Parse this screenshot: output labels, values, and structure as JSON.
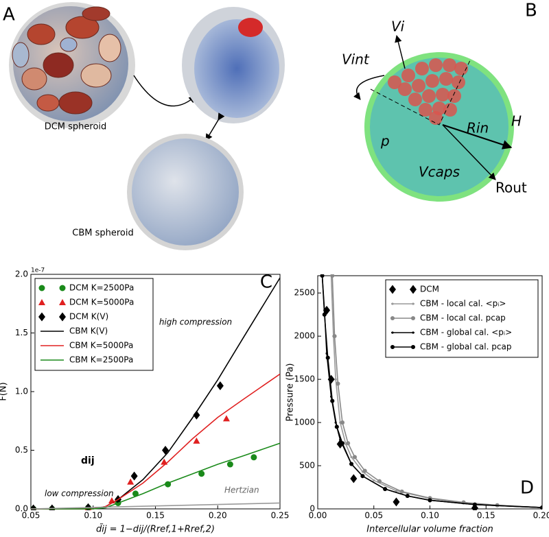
{
  "panel_a": {
    "label": "A",
    "dcm_caption": "DCM spheroid",
    "cbm_caption": "CBM spheroid"
  },
  "panel_b": {
    "label": "B",
    "v_i": "Vi",
    "v_int": "Vint",
    "r_in": "Rin",
    "h": "H",
    "p": "p",
    "v_caps": "Vcaps",
    "r_out": "Rout"
  },
  "chart_data": [
    {
      "type": "line",
      "panel_label": "C",
      "y_offset_label": "1e-7",
      "xlabel": "d̃ij = 1−dij/(Rref,1+Rref,2)",
      "ylabel": "F(N)",
      "annotations": [
        "high compression",
        "low compression",
        "Hertzian",
        "dij"
      ],
      "xlim": [
        0.05,
        0.25
      ],
      "xticks": [
        0.05,
        {
          "value": 0.1,
          "label": "0.10"
        },
        0.15,
        {
          "value": 0.2,
          "label": "0.20"
        },
        0.25
      ],
      "ylim": [
        0,
        2.0
      ],
      "yticks": [
        {
          "value": 0,
          "label": "0.0"
        },
        0.5,
        {
          "value": 1,
          "label": "1.0"
        },
        1.5,
        {
          "value": 2,
          "label": "2.0"
        }
      ],
      "legend": "upper left",
      "series": [
        {
          "name": "DCM K=2500Pa",
          "color": "#1a8a1a",
          "marker": "circle",
          "line": "none",
          "x": [
            0.052,
            0.067,
            0.096,
            0.12,
            0.134,
            0.16,
            0.187,
            0.21,
            0.229
          ],
          "values": [
            0,
            0,
            0.01,
            0.05,
            0.13,
            0.21,
            0.3,
            0.38,
            0.44
          ]
        },
        {
          "name": "DCM K=5000Pa",
          "color": "#e02020",
          "marker": "triangle",
          "line": "none",
          "x": [
            0.052,
            0.067,
            0.096,
            0.115,
            0.13,
            0.157,
            0.183,
            0.207
          ],
          "values": [
            0,
            0,
            0.01,
            0.07,
            0.23,
            0.4,
            0.58,
            0.77
          ]
        },
        {
          "name": "DCM K(V)",
          "color": "#000000",
          "marker": "diamond",
          "line": "none",
          "x": [
            0.052,
            0.067,
            0.096,
            0.12,
            0.133,
            0.158,
            0.183,
            0.202
          ],
          "values": [
            0,
            0,
            0.01,
            0.08,
            0.28,
            0.5,
            0.8,
            1.05
          ]
        },
        {
          "name": "CBM K(V)",
          "color": "#000000",
          "marker": "none",
          "line": "solid",
          "x": [
            0.05,
            0.1,
            0.11,
            0.12,
            0.14,
            0.16,
            0.18,
            0.2,
            0.22,
            0.25
          ],
          "values": [
            0,
            0,
            0.02,
            0.08,
            0.25,
            0.48,
            0.78,
            1.1,
            1.45,
            1.97
          ]
        },
        {
          "name": "CBM K=5000Pa",
          "color": "#e02020",
          "marker": "none",
          "line": "solid",
          "x": [
            0.05,
            0.1,
            0.11,
            0.12,
            0.14,
            0.16,
            0.18,
            0.2,
            0.22,
            0.25
          ],
          "values": [
            0,
            0,
            0.02,
            0.08,
            0.22,
            0.4,
            0.6,
            0.78,
            0.93,
            1.15
          ]
        },
        {
          "name": "CBM K=2500Pa",
          "color": "#1a8a1a",
          "marker": "none",
          "line": "solid",
          "x": [
            0.05,
            0.1,
            0.11,
            0.12,
            0.14,
            0.16,
            0.18,
            0.2,
            0.22,
            0.25
          ],
          "values": [
            0,
            0,
            0.01,
            0.05,
            0.13,
            0.22,
            0.3,
            0.38,
            0.45,
            0.56
          ]
        },
        {
          "color": "#999999",
          "marker": "none",
          "line": "solid",
          "legend": false,
          "x": [
            0.05,
            0.25
          ],
          "values": [
            0,
            0.05
          ]
        }
      ]
    },
    {
      "type": "line",
      "panel_label": "D",
      "xlabel": "Intercellular volume fraction",
      "ylabel": "Pressure (Pa)",
      "xlim": [
        0,
        0.2
      ],
      "xticks": [
        {
          "value": 0,
          "label": "0.00"
        },
        0.05,
        {
          "value": 0.1,
          "label": "0.10"
        },
        0.15,
        {
          "value": 0.2,
          "label": "0.20"
        }
      ],
      "ylim": [
        0,
        2700
      ],
      "yticks": [
        0,
        500,
        1000,
        1500,
        2000,
        2500
      ],
      "legend": "upper right",
      "series": [
        {
          "name": "DCM",
          "color": "#000000",
          "marker": "diamond",
          "line": "none",
          "x": [
            0.008,
            0.012,
            0.02,
            0.032,
            0.07,
            0.14
          ],
          "values": [
            2300,
            1500,
            750,
            350,
            80,
            10
          ]
        },
        {
          "name": "CBM - local cal. <pᵢ>",
          "color": "#999999",
          "marker": "dot",
          "line": "solid",
          "x": [
            0.012,
            0.014,
            0.016,
            0.02,
            0.025,
            0.03,
            0.04,
            0.05,
            0.07,
            0.1,
            0.13,
            0.16,
            0.2
          ],
          "values": [
            2700,
            2000,
            1500,
            1000,
            750,
            600,
            430,
            330,
            210,
            120,
            70,
            40,
            15
          ]
        },
        {
          "name": "CBM - local cal. pcap",
          "color": "#888888",
          "marker": "circle",
          "line": "solid",
          "x": [
            0.013,
            0.015,
            0.018,
            0.022,
            0.027,
            0.033,
            0.042,
            0.055,
            0.075,
            0.1,
            0.13,
            0.16,
            0.2
          ],
          "values": [
            2700,
            2000,
            1450,
            1000,
            760,
            600,
            440,
            320,
            200,
            125,
            75,
            42,
            15
          ]
        },
        {
          "name": "CBM - global cal. <pᵢ>",
          "color": "#000000",
          "marker": "dot",
          "line": "solid",
          "x": [
            0.004,
            0.006,
            0.008,
            0.012,
            0.016,
            0.02,
            0.03,
            0.04,
            0.06,
            0.08,
            0.1,
            0.14,
            0.2
          ],
          "values": [
            2700,
            2300,
            1800,
            1300,
            1000,
            800,
            520,
            380,
            230,
            150,
            100,
            50,
            15
          ]
        },
        {
          "name": "CBM - global cal. pcap",
          "color": "#000000",
          "marker": "circle",
          "line": "solid",
          "x": [
            0.004,
            0.006,
            0.009,
            0.013,
            0.017,
            0.022,
            0.03,
            0.04,
            0.06,
            0.08,
            0.1,
            0.14,
            0.2
          ],
          "values": [
            2700,
            2250,
            1750,
            1250,
            950,
            760,
            520,
            380,
            230,
            150,
            100,
            50,
            15
          ]
        }
      ]
    }
  ]
}
